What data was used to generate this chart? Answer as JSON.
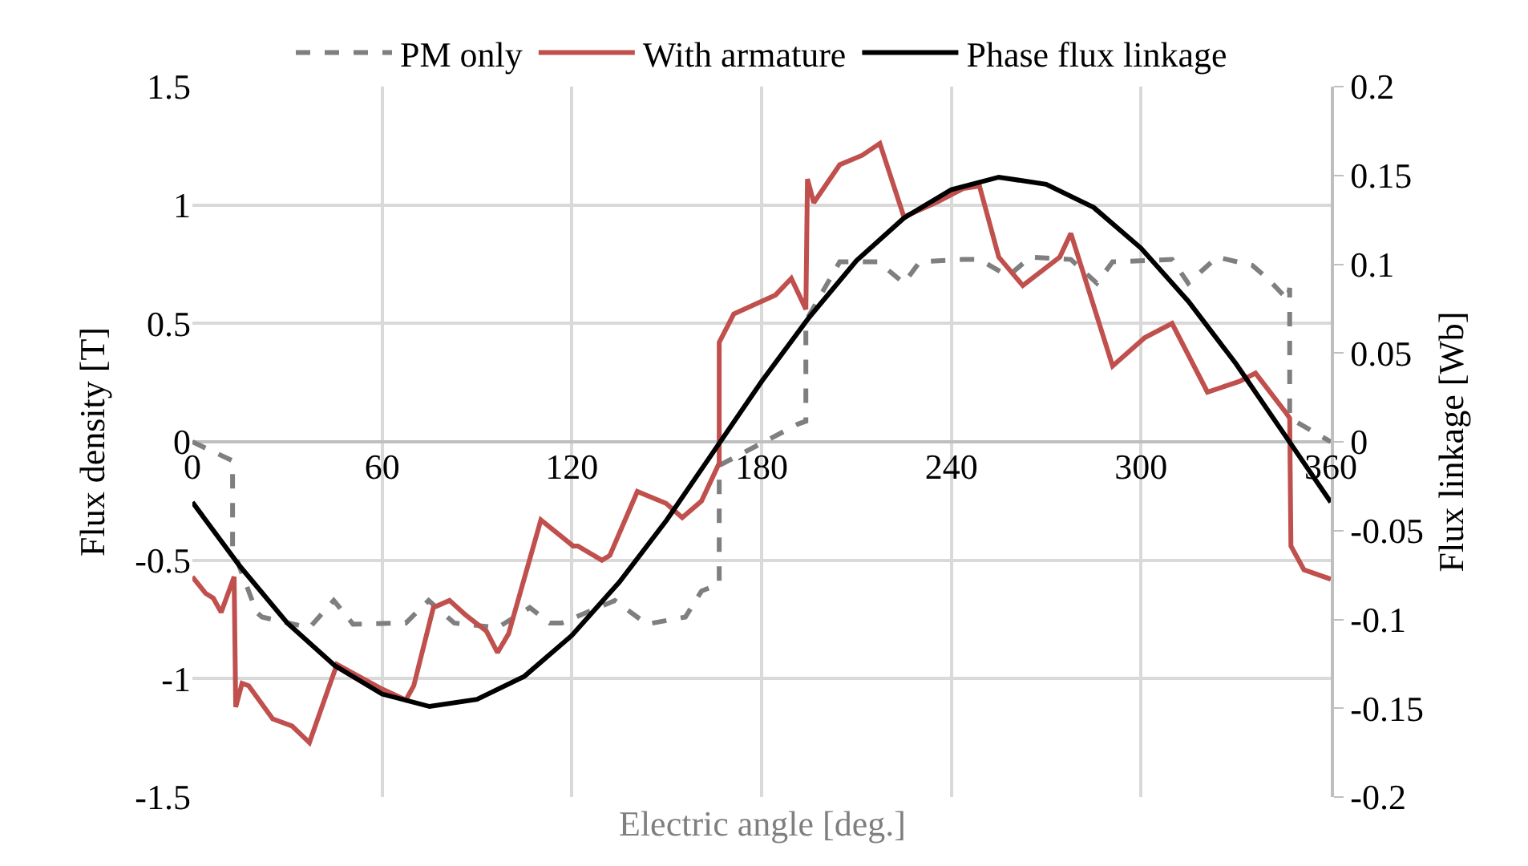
{
  "chart_data": {
    "type": "line",
    "xlabel": "Electric angle [deg.]",
    "ylabel": "Flux density [T]",
    "y2label": "Flux linkage [Wb]",
    "xlim": [
      0,
      360
    ],
    "xticks": [
      0,
      60,
      120,
      180,
      240,
      300,
      360
    ],
    "ylim": [
      -1.5,
      1.5
    ],
    "yticks": [
      -1.5,
      -1,
      -0.5,
      0,
      0.5,
      1,
      1.5
    ],
    "y2lim": [
      -0.2,
      0.2
    ],
    "y2ticks": [
      -0.2,
      -0.15,
      -0.1,
      -0.05,
      0,
      0.05,
      0.1,
      0.15,
      0.2
    ],
    "grid": true,
    "legend": "top",
    "marker": "none",
    "series": [
      {
        "name": "PM only",
        "color": "#7f7f7f",
        "line_style": "dashed",
        "x": [
          0,
          12.7,
          12.7,
          20.3,
          22,
          37,
          44.7,
          50.8,
          67.5,
          74.7,
          82.8,
          96.5,
          106.7,
          113,
          116.8,
          133.6,
          143.7,
          155.9,
          161,
          166.6,
          166.6,
          191.5,
          194,
          194,
          204.7,
          216.9,
          225,
          230,
          243.8,
          248.9,
          258,
          265,
          277.8,
          286,
          291,
          309.8,
          314.9,
          324,
          335.2,
          340,
          346.4,
          347,
          347,
          360
        ],
        "values": [
          0,
          -0.08,
          -0.45,
          -0.72,
          -0.74,
          -0.785,
          -0.67,
          -0.77,
          -0.765,
          -0.67,
          -0.765,
          -0.785,
          -0.7,
          -0.765,
          -0.765,
          -0.67,
          -0.77,
          -0.74,
          -0.63,
          -0.6,
          -0.1,
          0.075,
          0.087,
          0.51,
          0.76,
          0.76,
          0.67,
          0.76,
          0.77,
          0.77,
          0.7,
          0.78,
          0.77,
          0.67,
          0.76,
          0.77,
          0.67,
          0.78,
          0.745,
          0.69,
          0.6,
          0.65,
          0.1,
          0
        ]
      },
      {
        "name": "With armature",
        "color": "#c0504d",
        "line_style": "solid",
        "x": [
          0,
          4.2,
          6.6,
          9.1,
          13.2,
          13.7,
          15.7,
          17.8,
          25.4,
          31.5,
          37,
          45.7,
          59.4,
          67.5,
          70,
          76.2,
          81.3,
          86.3,
          93,
          96.5,
          100,
          110.2,
          120.4,
          121.9,
          129.5,
          132,
          140.7,
          149.8,
          154.9,
          161,
          166.6,
          166.6,
          171.2,
          177.8,
          184.4,
          189.4,
          194,
          194.5,
          196.5,
          204.7,
          211.8,
          217.4,
          225,
          235.1,
          243.8,
          248.9,
          255,
          262.6,
          274.3,
          277.8,
          291,
          301.2,
          309.8,
          321,
          331.1,
          336.2,
          345.4,
          347,
          347.4,
          351.5,
          360
        ],
        "values": [
          -0.57,
          -0.64,
          -0.66,
          -0.72,
          -0.57,
          -1.12,
          -1.02,
          -1.03,
          -1.17,
          -1.2,
          -1.27,
          -0.94,
          -1.04,
          -1.09,
          -1.03,
          -0.7,
          -0.67,
          -0.73,
          -0.8,
          -0.89,
          -0.81,
          -0.33,
          -0.44,
          -0.44,
          -0.5,
          -0.48,
          -0.21,
          -0.26,
          -0.32,
          -0.25,
          -0.09,
          0.42,
          0.54,
          0.58,
          0.62,
          0.69,
          0.56,
          1.11,
          1.01,
          1.17,
          1.21,
          1.26,
          0.95,
          1.01,
          1.07,
          1.08,
          0.78,
          0.66,
          0.78,
          0.88,
          0.32,
          0.44,
          0.5,
          0.21,
          0.255,
          0.29,
          0.13,
          0.1,
          -0.44,
          -0.54,
          -0.58
        ]
      },
      {
        "name": "Phase flux linkage",
        "color": "#000000",
        "line_style": "solid",
        "axis": "y2",
        "x": [
          0,
          15,
          30,
          45,
          60,
          75,
          90,
          105,
          120,
          135,
          150,
          165,
          180,
          195,
          210,
          225,
          240,
          255,
          270,
          285,
          300,
          315,
          330,
          345,
          360
        ],
        "values": [
          -0.034,
          -0.07,
          -0.102,
          -0.126,
          -0.142,
          -0.149,
          -0.145,
          -0.132,
          -0.109,
          -0.079,
          -0.044,
          -0.005,
          0.034,
          0.07,
          0.102,
          0.126,
          0.142,
          0.149,
          0.145,
          0.132,
          0.109,
          0.079,
          0.044,
          0.005,
          -0.034
        ]
      }
    ]
  }
}
